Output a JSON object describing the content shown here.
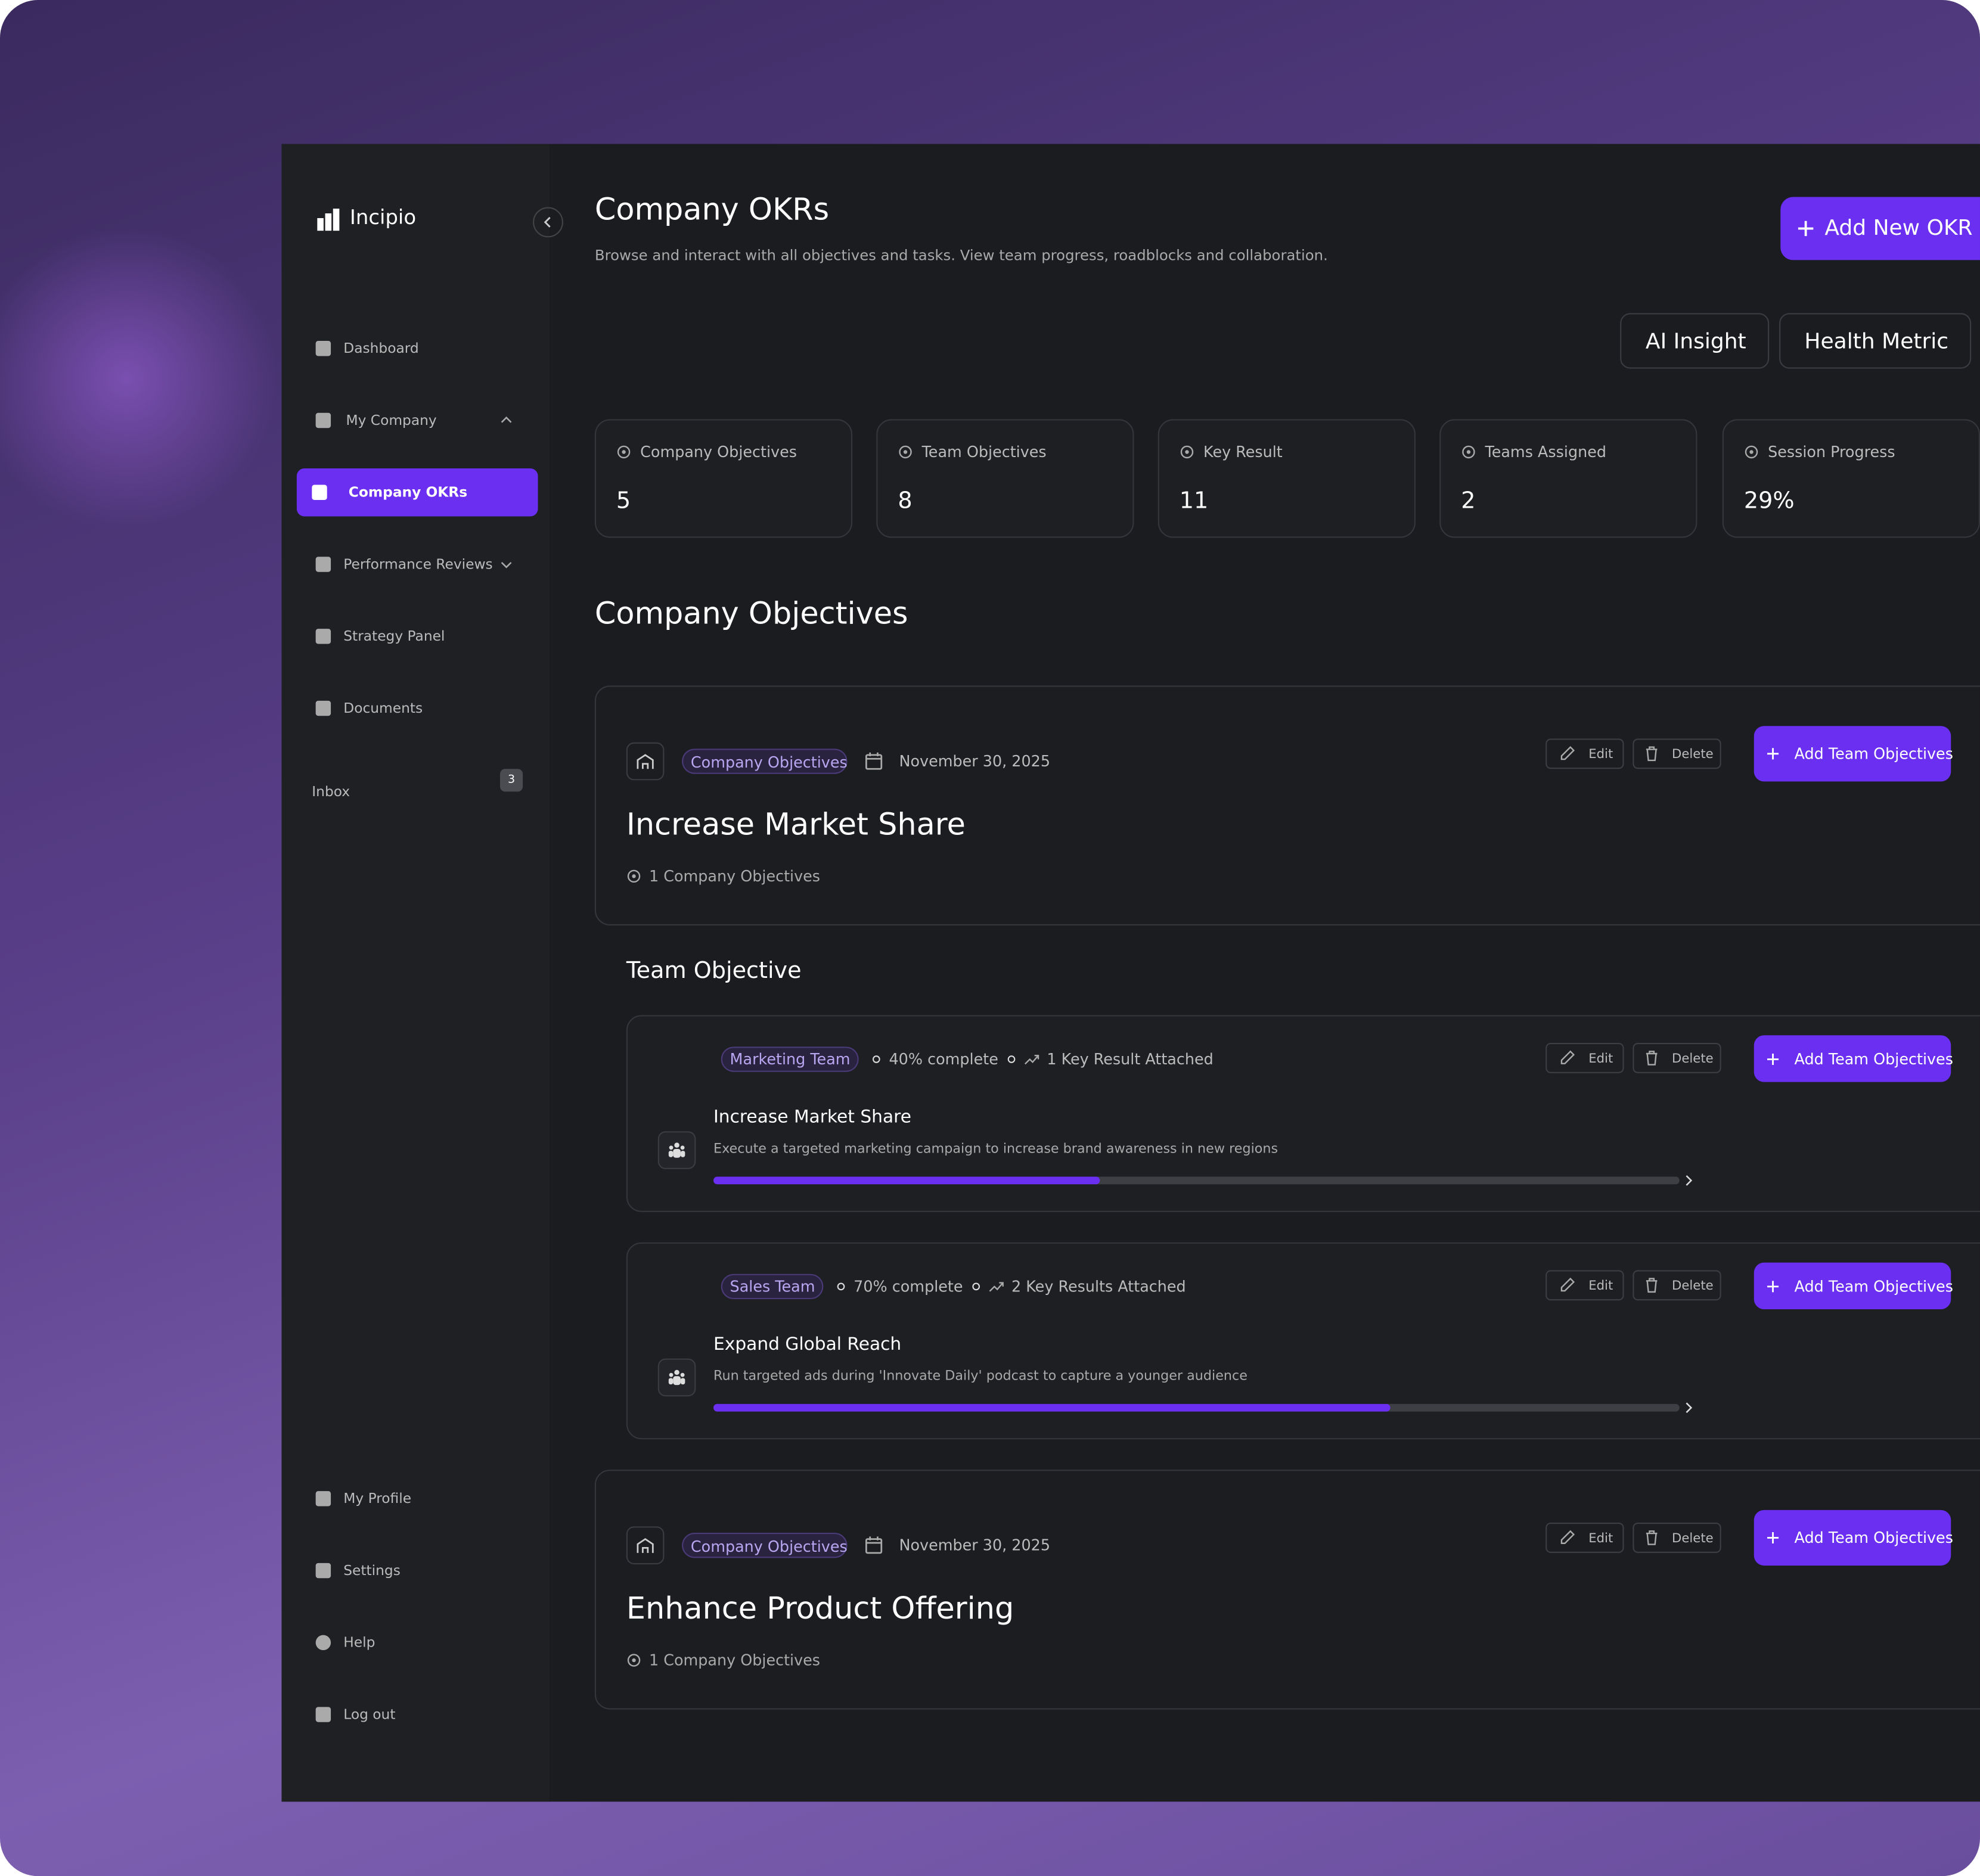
{
  "sidebar": {
    "brand": "Incipio",
    "nav": [
      {
        "label": "Dashboard"
      },
      {
        "label": "My Company"
      },
      {
        "label": "Company OKRs"
      },
      {
        "label": "Performance Reviews"
      },
      {
        "label": "Strategy Panel"
      },
      {
        "label": "Documents"
      },
      {
        "label": "Inbox",
        "badge": "3"
      }
    ],
    "bottom": [
      {
        "label": "My Profile"
      },
      {
        "label": "Settings"
      },
      {
        "label": "Help"
      },
      {
        "label": "Log out"
      }
    ]
  },
  "header": {
    "title": "Company OKRs",
    "subtitle": "Browse and interact with all objectives and tasks. View team progress, roadblocks and collaboration.",
    "add_button": "Add New OKR",
    "tabs": [
      "AI Insight",
      "Health Metric"
    ]
  },
  "stats": [
    {
      "label": "Company Objectives",
      "value": "5"
    },
    {
      "label": "Team Objectives",
      "value": "8"
    },
    {
      "label": "Key Result",
      "value": "11"
    },
    {
      "label": "Teams Assigned",
      "value": "2"
    },
    {
      "label": "Session Progress",
      "value": "29%"
    }
  ],
  "section_title": "Company Objectives",
  "objectives": [
    {
      "tag": "Company Objectives",
      "date": "November 30, 2025",
      "title": "Increase Market Share",
      "count": "1 Company Objectives",
      "edit": "Edit",
      "delete": "Delete",
      "add": "Add Team Objectives"
    },
    {
      "tag": "Company Objectives",
      "date": "November 30, 2025",
      "title": "Enhance Product Offering",
      "count": "1 Company Objectives",
      "edit": "Edit",
      "delete": "Delete",
      "add": "Add Team Objectives"
    }
  ],
  "team_section": "Team Objective",
  "team_objectives": [
    {
      "team": "Marketing Team",
      "progress": 40,
      "progress_label": "40% complete",
      "key_results": "1 Key Result Attached",
      "title": "Increase Market Share",
      "description": "Execute a targeted marketing campaign to increase brand awareness in new regions",
      "edit": "Edit",
      "delete": "Delete",
      "add": "Add Team Objectives"
    },
    {
      "team": "Sales Team",
      "progress": 70,
      "progress_label": "70% complete",
      "key_results": "2 Key Results Attached",
      "title": "Expand Global Reach",
      "description": "Run targeted ads during 'Innovate Daily' podcast to capture a younger audience",
      "edit": "Edit",
      "delete": "Delete",
      "add": "Add Team Objectives"
    }
  ]
}
